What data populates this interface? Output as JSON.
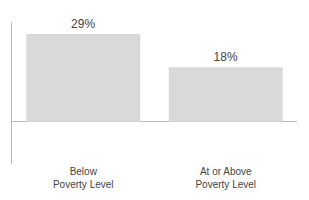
{
  "chart_data": {
    "type": "bar",
    "categories": [
      "Below\nPoverty Level",
      "At or Above\nPoverty Level"
    ],
    "values": [
      29,
      18
    ],
    "value_labels": [
      "29%",
      "18%"
    ],
    "data_labels": true,
    "color": "#d9d9d9",
    "ylim": [
      -14,
      33
    ],
    "tick_labels": "x",
    "grid": false
  }
}
